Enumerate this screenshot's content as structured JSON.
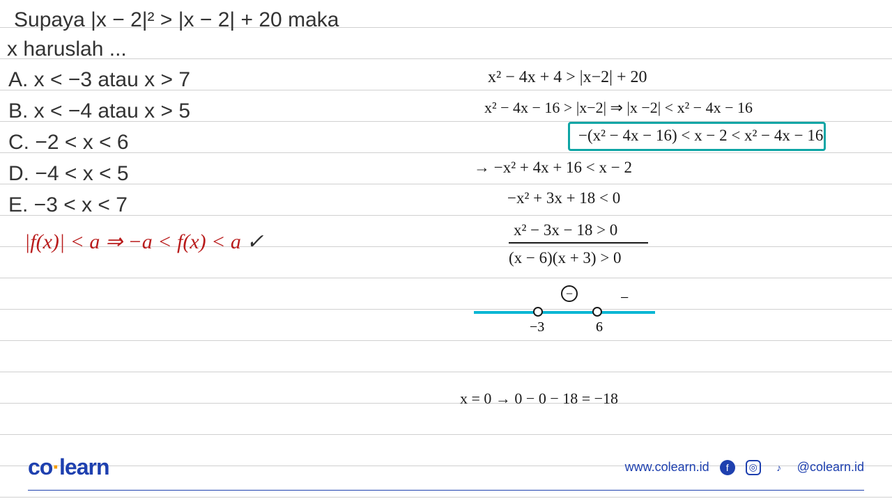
{
  "question": {
    "line1": "Supaya  |x − 2|² > |x − 2| + 20 maka",
    "line2": "x haruslah ..."
  },
  "options": {
    "a": "A. x < −3 atau x > 7",
    "b": "B. x < −4 atau x > 5",
    "c": "C. −2 < x < 6",
    "d": "D. −4 < x < 5",
    "e": "E. −3 < x < 7"
  },
  "red_note": {
    "text": "|f(x)| < a ⇒ −a < f(x) < a",
    "check": "✓"
  },
  "handwriting": {
    "line1": "x² − 4x + 4  >  |x−2| + 20",
    "line2": "x² − 4x − 16  >  |x−2|  ⇒  |x −2| < x² − 4x − 16",
    "line3": "−(x² − 4x − 16) < x − 2 < x² − 4x − 16",
    "line4": "→ −x² + 4x + 16 < x − 2",
    "line5": "−x² + 3x + 18 < 0",
    "line6": "x² − 3x − 18 > 0",
    "line7": "(x − 6)(x + 3) > 0",
    "line8": "x = 0 → 0 − 0 − 18 = −18"
  },
  "number_line": {
    "label1": "−3",
    "label2": "6",
    "region_symbol": "−",
    "region_right": "−"
  },
  "footer": {
    "logo_co": "co",
    "logo_learn": "learn",
    "url": "www.colearn.id",
    "handle": "@colearn.id"
  },
  "colors": {
    "text": "#333333",
    "red": "#b91c1c",
    "teal": "#0ea5a5",
    "cyan": "#06b6d4",
    "blue": "#1e40af",
    "rule": "#d0d0d0"
  }
}
